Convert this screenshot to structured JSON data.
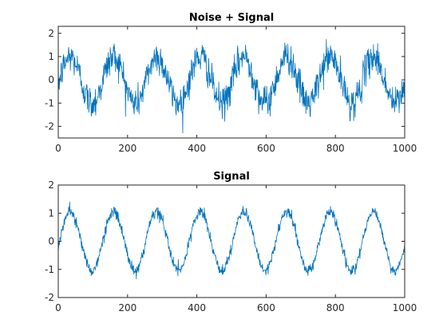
{
  "colors": {
    "line": "#0072BD",
    "axis": "#262626",
    "background": "#ffffff"
  },
  "chart_data": [
    {
      "type": "line",
      "title": "Noise + Signal",
      "xlabel": "",
      "ylabel": "",
      "xlim": [
        0,
        1000
      ],
      "ylim": [
        -2.5,
        2.3
      ],
      "xticks": [
        0,
        200,
        400,
        600,
        800,
        1000
      ],
      "yticks": [
        -2,
        -1,
        0,
        1,
        2
      ],
      "grid": false,
      "series": [
        {
          "signal": {
            "amplitude": 1.0,
            "period": 125,
            "phase_deg": -10,
            "offset": 0
          },
          "noise_std": 0.35,
          "num_points": 1000,
          "x": [
            0,
            1000
          ]
        }
      ]
    },
    {
      "type": "line",
      "title": "Signal",
      "xlabel": "",
      "ylabel": "",
      "xlim": [
        0,
        1000
      ],
      "ylim": [
        -2,
        2
      ],
      "xticks": [
        0,
        200,
        400,
        600,
        800,
        1000
      ],
      "yticks": [
        -2,
        -1,
        0,
        1,
        2
      ],
      "grid": false,
      "series": [
        {
          "signal": {
            "amplitude": 1.05,
            "period": 125,
            "phase_deg": -10,
            "offset": 0
          },
          "noise_std": 0.1,
          "num_points": 1000,
          "x": [
            0,
            1000
          ]
        }
      ]
    }
  ]
}
